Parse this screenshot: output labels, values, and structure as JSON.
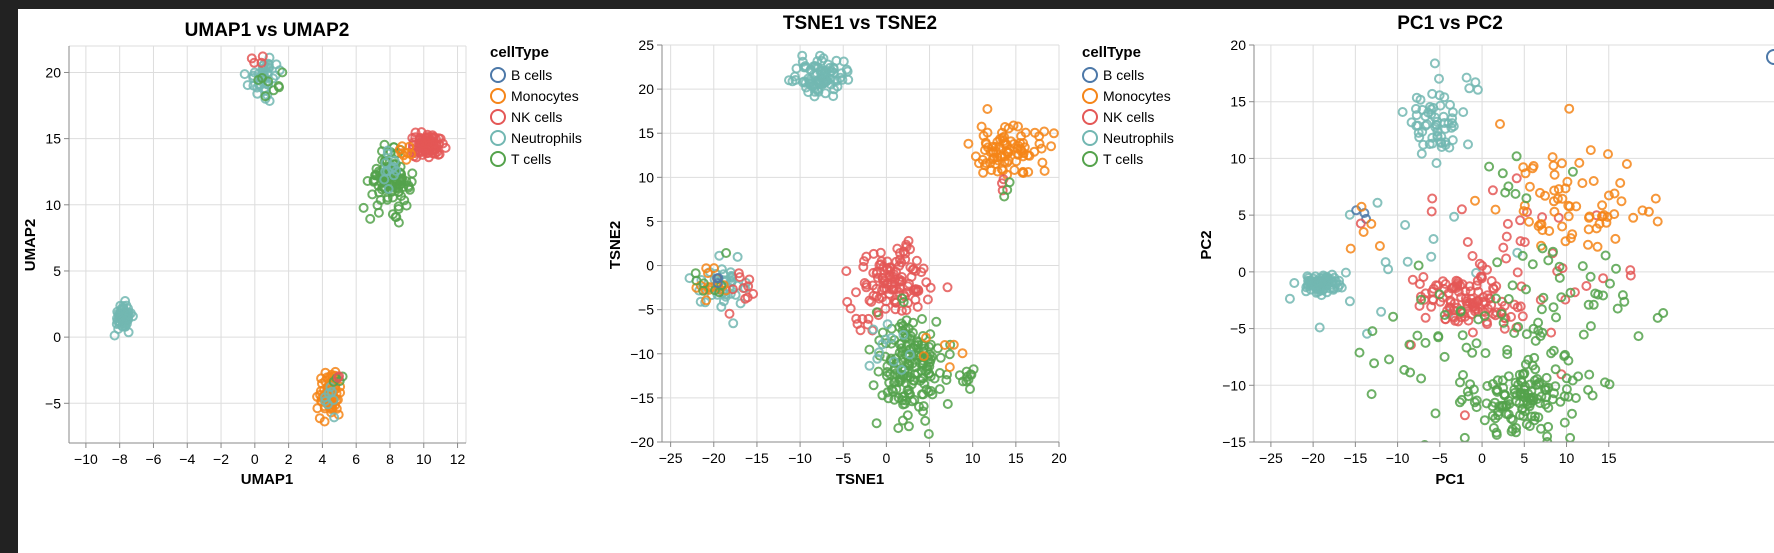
{
  "colors": {
    "B cells": "#4c78a8",
    "Monocytes": "#f58518",
    "NK cells": "#e45756",
    "Neutrophils": "#72b7b2",
    "T cells": "#54a24b"
  },
  "chart_data": [
    {
      "type": "scatter",
      "title": "UMAP1 vs UMAP2",
      "xlabel": "UMAP1",
      "ylabel": "UMAP2",
      "xlim": [
        -11,
        12.5
      ],
      "ylim": [
        -8,
        22
      ],
      "xticks": [
        -10,
        -8,
        -6,
        -4,
        -2,
        0,
        2,
        4,
        6,
        8,
        10,
        12
      ],
      "xtick_labels": [
        "−10",
        "−8",
        "−6",
        "−4",
        "−2",
        "0",
        "2",
        "4",
        "6",
        "8",
        "10",
        "12"
      ],
      "yticks": [
        -5,
        0,
        5,
        10,
        15,
        20
      ],
      "ytick_labels": [
        "−5",
        "0",
        "5",
        "10",
        "15",
        "20"
      ],
      "grid": true,
      "legend": {
        "title": "cellType",
        "entries": [
          "B cells",
          "Monocytes",
          "NK cells",
          "Neutrophils",
          "T cells"
        ],
        "placement": "right"
      },
      "clusters": [
        {
          "series": "Neutrophils",
          "cx": -7.8,
          "cy": 1.5,
          "sx": 0.25,
          "sy": 0.5,
          "n": 60
        },
        {
          "series": "Neutrophils",
          "cx": 0.6,
          "cy": 19.7,
          "sx": 0.5,
          "sy": 0.7,
          "n": 45
        },
        {
          "series": "T cells",
          "cx": 1.0,
          "cy": 19.2,
          "sx": 0.4,
          "sy": 0.5,
          "n": 8
        },
        {
          "series": "NK cells",
          "cx": 0.3,
          "cy": 20.6,
          "sx": 0.3,
          "sy": 0.3,
          "n": 4
        },
        {
          "series": "T cells",
          "cx": 8.0,
          "cy": 11.8,
          "sx": 0.6,
          "sy": 1.0,
          "n": 110
        },
        {
          "series": "Neutrophils",
          "cx": 8.1,
          "cy": 12.8,
          "sx": 0.4,
          "sy": 1.0,
          "n": 12
        },
        {
          "series": "NK cells",
          "cx": 10.2,
          "cy": 14.5,
          "sx": 0.5,
          "sy": 0.45,
          "n": 80
        },
        {
          "series": "Monocytes",
          "cx": 9.0,
          "cy": 14.0,
          "sx": 0.6,
          "sy": 0.4,
          "n": 8
        },
        {
          "series": "Monocytes",
          "cx": 4.4,
          "cy": -4.3,
          "sx": 0.3,
          "sy": 0.8,
          "n": 80
        },
        {
          "series": "Neutrophils",
          "cx": 4.6,
          "cy": -4.5,
          "sx": 0.2,
          "sy": 0.6,
          "n": 8
        },
        {
          "series": "T cells",
          "cx": 4.9,
          "cy": -3.3,
          "sx": 0.15,
          "sy": 0.2,
          "n": 4
        },
        {
          "series": "NK cells",
          "cx": 4.9,
          "cy": -3.1,
          "sx": 0.1,
          "sy": 0.1,
          "n": 2
        }
      ]
    },
    {
      "type": "scatter",
      "title": "TSNE1 vs TSNE2",
      "xlabel": "TSNE1",
      "ylabel": "TSNE2",
      "xlim": [
        -26,
        20
      ],
      "ylim": [
        -20,
        25
      ],
      "xticks": [
        -25,
        -20,
        -15,
        -10,
        -5,
        0,
        5,
        10,
        15,
        20
      ],
      "xtick_labels": [
        "−25",
        "−20",
        "−15",
        "−10",
        "−5",
        "0",
        "5",
        "10",
        "15",
        "20"
      ],
      "yticks": [
        -20,
        -15,
        -10,
        -5,
        0,
        5,
        10,
        15,
        20,
        25
      ],
      "ytick_labels": [
        "−20",
        "−15",
        "−10",
        "−5",
        "0",
        "5",
        "10",
        "15",
        "20",
        "25"
      ],
      "grid": true,
      "legend": {
        "title": "cellType",
        "entries": [
          "B cells",
          "Monocytes",
          "NK cells",
          "Neutrophils",
          "T cells"
        ],
        "placement": "right"
      },
      "clusters": [
        {
          "series": "Neutrophils",
          "cx": -7.5,
          "cy": 21.5,
          "sx": 1.3,
          "sy": 1.0,
          "n": 90
        },
        {
          "series": "Monocytes",
          "cx": 14.0,
          "cy": 13.0,
          "sx": 2.2,
          "sy": 1.5,
          "n": 90
        },
        {
          "series": "NK cells",
          "cx": 13.5,
          "cy": 9.0,
          "sx": 0.5,
          "sy": 0.5,
          "n": 3
        },
        {
          "series": "T cells",
          "cx": 14.0,
          "cy": 8.5,
          "sx": 0.4,
          "sy": 0.6,
          "n": 3
        },
        {
          "series": "Neutrophils",
          "cx": -19.0,
          "cy": -2.0,
          "sx": 1.5,
          "sy": 1.5,
          "n": 40
        },
        {
          "series": "Monocytes",
          "cx": -20.5,
          "cy": -2.0,
          "sx": 1.0,
          "sy": 1.0,
          "n": 15
        },
        {
          "series": "NK cells",
          "cx": -17.0,
          "cy": -2.5,
          "sx": 1.0,
          "sy": 1.5,
          "n": 10
        },
        {
          "series": "T cells",
          "cx": -21.0,
          "cy": -1.5,
          "sx": 1.2,
          "sy": 1.2,
          "n": 8
        },
        {
          "series": "B cells",
          "cx": -20.0,
          "cy": -1.5,
          "sx": 0.5,
          "sy": 0.5,
          "n": 3
        },
        {
          "series": "NK cells",
          "cx": 0.8,
          "cy": -1.8,
          "sx": 2.0,
          "sy": 2.0,
          "n": 110
        },
        {
          "series": "NK cells",
          "cx": 2.3,
          "cy": 2.0,
          "sx": 0.5,
          "sy": 0.4,
          "n": 5
        },
        {
          "series": "T cells",
          "cx": 3.0,
          "cy": -11.5,
          "sx": 2.0,
          "sy": 3.0,
          "n": 170
        },
        {
          "series": "T cells",
          "cx": 9.3,
          "cy": -13.0,
          "sx": 0.4,
          "sy": 1.0,
          "n": 10
        },
        {
          "series": "Neutrophils",
          "cx": 0.5,
          "cy": -9.0,
          "sx": 1.3,
          "sy": 1.5,
          "n": 12
        },
        {
          "series": "Monocytes",
          "cx": 6.0,
          "cy": -10.0,
          "sx": 1.5,
          "sy": 1.0,
          "n": 6
        },
        {
          "series": "NK cells",
          "cx": -3.0,
          "cy": -6.5,
          "sx": 0.8,
          "sy": 0.5,
          "n": 6
        }
      ]
    },
    {
      "type": "scatter",
      "title": "PC1 vs PC2",
      "xlabel": "PC1",
      "ylabel": "PC2",
      "xlim": [
        -27,
        20.5
      ],
      "ylim": [
        -15,
        20
      ],
      "xticks": [
        -25,
        -20,
        -15,
        -10,
        -5,
        0,
        5,
        10,
        15
      ],
      "xtick_labels": [
        "−25",
        "−20",
        "−15",
        "−10",
        "−5",
        "0",
        "5",
        "10",
        "15"
      ],
      "yticks": [
        -15,
        -10,
        -5,
        0,
        5,
        10,
        15,
        20
      ],
      "ytick_labels": [
        "−15",
        "−10",
        "−5",
        "0",
        "5",
        "10",
        "15",
        "20"
      ],
      "grid": true,
      "legend": null,
      "clusters": [
        {
          "series": "Neutrophils",
          "cx": -19.0,
          "cy": -1.0,
          "sx": 1.2,
          "sy": 0.4,
          "n": 80
        },
        {
          "series": "Neutrophils",
          "cx": -5.5,
          "cy": 13.0,
          "sx": 1.8,
          "sy": 1.8,
          "n": 60
        },
        {
          "series": "Neutrophils",
          "cx": -10.0,
          "cy": 0.0,
          "sx": 6.0,
          "sy": 3.5,
          "n": 18
        },
        {
          "series": "Neutrophils",
          "cx": -1.5,
          "cy": 16.5,
          "sx": 1.0,
          "sy": 0.8,
          "n": 4
        },
        {
          "series": "B cells",
          "cx": -15.0,
          "cy": 5.0,
          "sx": 0.8,
          "sy": 0.6,
          "n": 3
        },
        {
          "series": "NK cells",
          "cx": -1.5,
          "cy": -2.5,
          "sx": 3.0,
          "sy": 1.2,
          "n": 110
        },
        {
          "series": "NK cells",
          "cx": 5.0,
          "cy": 0.5,
          "sx": 7.0,
          "sy": 4.5,
          "n": 40
        },
        {
          "series": "Monocytes",
          "cx": 11.0,
          "cy": 5.5,
          "sx": 4.5,
          "sy": 2.8,
          "n": 70
        },
        {
          "series": "Monocytes",
          "cx": -14.0,
          "cy": 4.0,
          "sx": 1.5,
          "sy": 1.5,
          "n": 5
        },
        {
          "series": "T cells",
          "cx": 4.5,
          "cy": -11.0,
          "sx": 4.0,
          "sy": 2.0,
          "n": 150
        },
        {
          "series": "T cells",
          "cx": 7.0,
          "cy": -4.0,
          "sx": 6.0,
          "sy": 3.0,
          "n": 60
        },
        {
          "series": "T cells",
          "cx": -8.0,
          "cy": -5.0,
          "sx": 3.5,
          "sy": 3.0,
          "n": 15
        },
        {
          "series": "T cells",
          "cx": 5.0,
          "cy": 8.0,
          "sx": 2.0,
          "sy": 1.2,
          "n": 8
        }
      ]
    }
  ]
}
